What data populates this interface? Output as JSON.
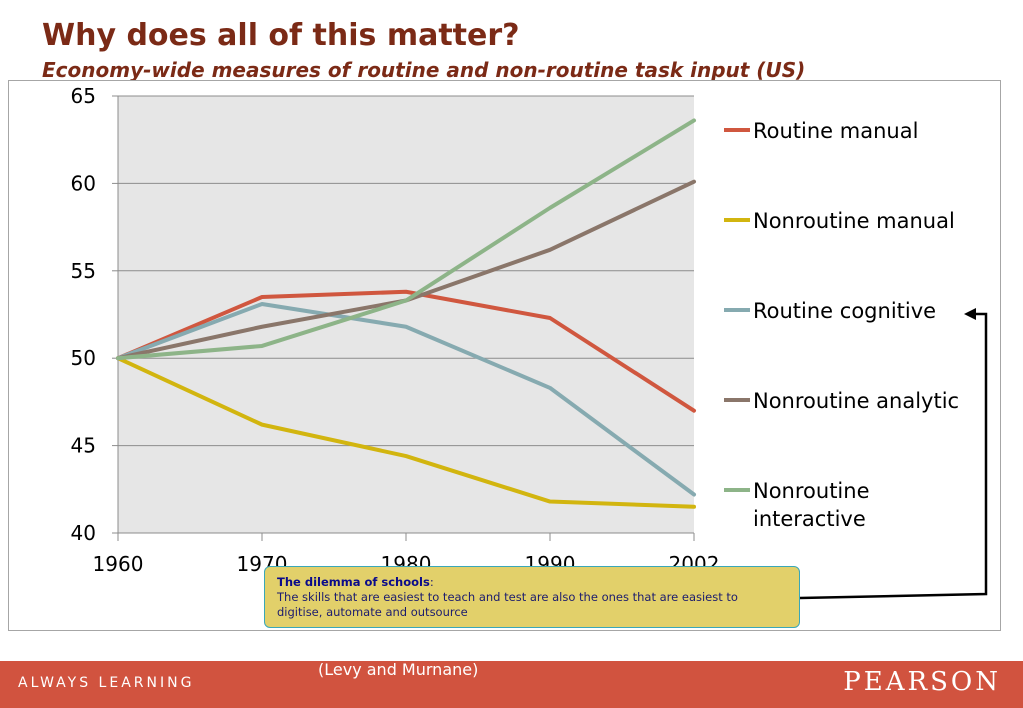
{
  "header": {
    "title": "Why does all of this matter?",
    "subtitle": "Economy-wide measures of routine and non-routine task input (US)"
  },
  "chart_data": {
    "type": "line",
    "categories": [
      "1960",
      "1970",
      "1980",
      "1990",
      "2002"
    ],
    "ylim": [
      40,
      65
    ],
    "yticks": [
      "40",
      "45",
      "50",
      "55",
      "60",
      "65"
    ],
    "series": [
      {
        "name": "Routine manual",
        "color": "#d0573f",
        "values": [
          50.0,
          53.5,
          53.8,
          52.3,
          47.0
        ]
      },
      {
        "name": "Nonroutine manual",
        "color": "#d2b50f",
        "values": [
          50.0,
          46.2,
          44.4,
          41.8,
          41.5
        ]
      },
      {
        "name": "Routine cognitive",
        "color": "#86aab0",
        "values": [
          50.0,
          53.1,
          51.8,
          48.3,
          42.2
        ]
      },
      {
        "name": "Nonroutine analytic",
        "color": "#8a766a",
        "values": [
          50.0,
          51.8,
          53.3,
          56.2,
          60.1
        ]
      },
      {
        "name": "Nonroutine interactive",
        "color": "#8db488",
        "values": [
          50.0,
          50.7,
          53.3,
          58.6,
          63.6
        ]
      }
    ]
  },
  "legend": {
    "items": [
      "Routine manual",
      "Nonroutine manual",
      "Routine cognitive",
      "Nonroutine analytic",
      "Nonroutine interactive"
    ]
  },
  "callout": {
    "title": "The dilemma of schools",
    "suffix": ":",
    "text": "The skills that are easiest to teach and test are also the ones that are easiest to digitise, automate and outsource"
  },
  "footer": {
    "tagline": "ALWAYS LEARNING",
    "source": "(Levy and Murnane)",
    "brand": "PEARSON"
  },
  "colors": {
    "title": "#7b2a16",
    "footer_bg": "#d1533f",
    "plot_bg": "#e6e6e6",
    "callout_bg": "#e2d06a",
    "callout_border": "#3aa7b8"
  }
}
